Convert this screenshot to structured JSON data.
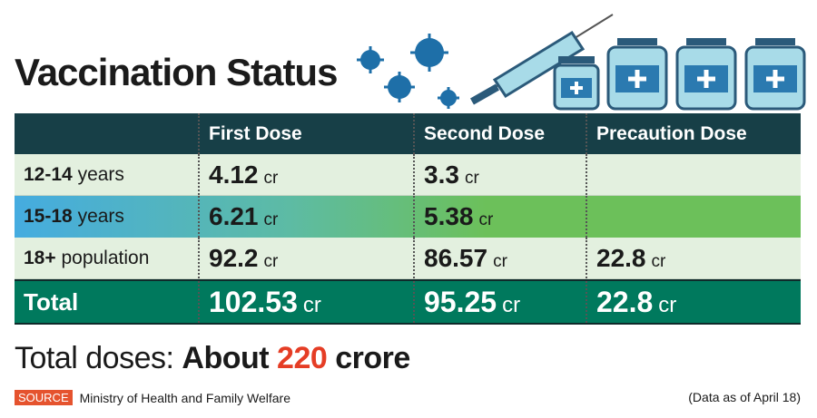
{
  "title": "Vaccination Status",
  "colors": {
    "header": "#173f47",
    "light_row": "#e3f0df",
    "total_row": "#00795d",
    "accent": "#e53d25",
    "illustration": "#1e6fa8"
  },
  "chart_data": {
    "type": "table",
    "title": "Vaccination Status",
    "columns": [
      "",
      "First Dose",
      "Second Dose",
      "Precaution Dose"
    ],
    "unit": "cr",
    "rows": [
      {
        "bold": "12-14",
        "label": "years",
        "first": "4.12",
        "second": "3.3",
        "precaution": ""
      },
      {
        "bold": "15-18",
        "label": "years",
        "first": "6.21",
        "second": "5.38",
        "precaution": ""
      },
      {
        "bold": "18+",
        "label": "population",
        "first": "92.2",
        "second": "86.57",
        "precaution": "22.8"
      }
    ],
    "total": {
      "label": "Total",
      "first": "102.53",
      "second": "95.25",
      "precaution": "22.8"
    }
  },
  "summary": {
    "prefix": "Total doses:",
    "about": "About",
    "number": "220",
    "suffix": "crore"
  },
  "footer": {
    "source_tag": "SOURCE",
    "source": "Ministry of Health and Family Welfare",
    "as_of": "(Data as of April 18)"
  }
}
